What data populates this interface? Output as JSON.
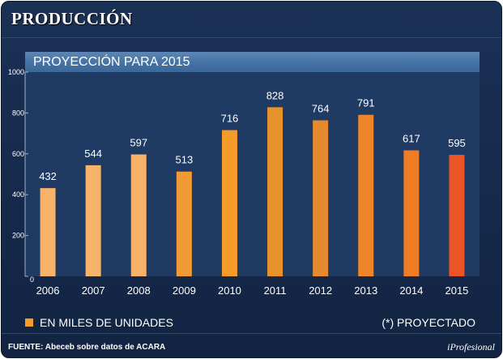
{
  "header": {
    "title": "PRODUCCIÓN"
  },
  "chart_data": {
    "type": "bar",
    "title": "PROYECCIÓN PARA 2015",
    "categories": [
      "2006",
      "2007",
      "2008",
      "2009",
      "2010",
      "2011",
      "2012",
      "2013",
      "2014",
      "2015"
    ],
    "values": [
      432,
      544,
      597,
      513,
      716,
      828,
      764,
      791,
      617,
      595
    ],
    "colors": [
      "#f7b36a",
      "#f7b36a",
      "#f7b36a",
      "#f29a34",
      "#f49b2a",
      "#e8922c",
      "#e78a2e",
      "#f08428",
      "#f17c26",
      "#ec5326"
    ],
    "yticks": [
      0,
      200,
      400,
      600,
      800,
      1000
    ],
    "ylim": [
      0,
      1000
    ],
    "xlabel": "",
    "ylabel": "",
    "legend": "EN MILES DE UNIDADES",
    "note": "(*) PROYECTADO",
    "source": "FUENTE: Abeceb sobre datos de ACARA"
  },
  "footer": {
    "brand": "iProfesional"
  }
}
